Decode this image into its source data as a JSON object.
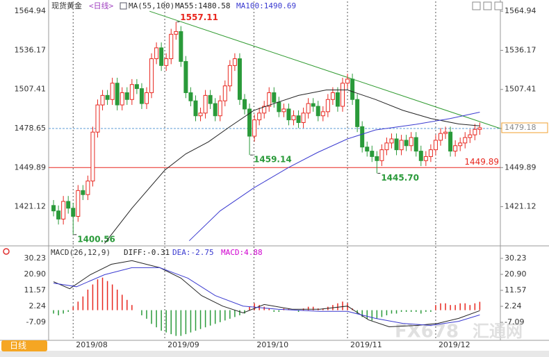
{
  "chart_data": [
    {
      "type": "candlestick",
      "title": "现货黄金",
      "subtitle": "<日线>",
      "indicator": "MA(55,100)",
      "up_color": "#e8271f",
      "down_color": "#2a9a3a",
      "open": [
        1422,
        1418,
        1412,
        1425,
        1420,
        1414,
        1433,
        1430,
        1440,
        1476,
        1496,
        1503,
        1500,
        1512,
        1496,
        1505,
        1500,
        1511,
        1508,
        1497,
        1505,
        1530,
        1538,
        1525,
        1530,
        1548,
        1550,
        1528,
        1505,
        1499,
        1488,
        1490,
        1503,
        1497,
        1488,
        1499,
        1510,
        1525,
        1530,
        1500,
        1493,
        1473,
        1485,
        1490,
        1495,
        1505,
        1498,
        1491,
        1493,
        1485,
        1488,
        1483,
        1490,
        1497,
        1495,
        1488,
        1491,
        1500,
        1505,
        1495,
        1512,
        1515,
        1500,
        1480,
        1465,
        1462,
        1458,
        1455,
        1463,
        1468,
        1471,
        1463,
        1470,
        1466,
        1472,
        1462,
        1455,
        1458,
        1463,
        1470,
        1475,
        1476,
        1462,
        1466,
        1468,
        1472,
        1474,
        1478
      ],
      "high": [
        1426,
        1422,
        1429,
        1429,
        1424,
        1437,
        1437,
        1444,
        1480,
        1500,
        1507,
        1507,
        1516,
        1516,
        1509,
        1509,
        1515,
        1515,
        1512,
        1509,
        1534,
        1542,
        1542,
        1534,
        1552,
        1557.11,
        1554,
        1532,
        1509,
        1503,
        1494,
        1507,
        1507,
        1501,
        1503,
        1514,
        1529,
        1534,
        1534,
        1504,
        1497,
        1489,
        1494,
        1499,
        1509,
        1509,
        1502,
        1497,
        1497,
        1492,
        1492,
        1494,
        1501,
        1501,
        1499,
        1495,
        1504,
        1509,
        1509,
        1516,
        1519,
        1519,
        1504,
        1484,
        1469,
        1466,
        1462,
        1467,
        1472,
        1475,
        1475,
        1474,
        1474,
        1476,
        1476,
        1466,
        1462,
        1467,
        1474,
        1479,
        1480,
        1480,
        1470,
        1472,
        1476,
        1478,
        1482,
        1483
      ],
      "low": [
        1414,
        1408,
        1408,
        1416,
        1400.56,
        1410,
        1426,
        1426,
        1436,
        1472,
        1492,
        1496,
        1496,
        1492,
        1492,
        1496,
        1496,
        1504,
        1493,
        1493,
        1501,
        1526,
        1521,
        1521,
        1526,
        1544,
        1524,
        1501,
        1495,
        1484,
        1484,
        1486,
        1493,
        1484,
        1484,
        1495,
        1506,
        1521,
        1496,
        1489,
        1459.14,
        1469,
        1481,
        1486,
        1491,
        1494,
        1487,
        1487,
        1481,
        1481,
        1479,
        1479,
        1486,
        1491,
        1484,
        1484,
        1487,
        1496,
        1491,
        1491,
        1508,
        1496,
        1476,
        1461,
        1458,
        1454,
        1445.7,
        1451,
        1459,
        1464,
        1459,
        1459,
        1462,
        1462,
        1458,
        1451,
        1451,
        1454,
        1459,
        1466,
        1471,
        1458,
        1458,
        1462,
        1464,
        1468,
        1470,
        1474
      ],
      "close": [
        1418,
        1412,
        1425,
        1420,
        1414,
        1433,
        1430,
        1440,
        1476,
        1496,
        1503,
        1500,
        1512,
        1496,
        1505,
        1500,
        1511,
        1508,
        1497,
        1505,
        1530,
        1538,
        1525,
        1530,
        1548,
        1550,
        1528,
        1505,
        1499,
        1488,
        1490,
        1503,
        1497,
        1488,
        1499,
        1510,
        1525,
        1530,
        1500,
        1493,
        1473,
        1485,
        1490,
        1495,
        1505,
        1498,
        1491,
        1493,
        1485,
        1488,
        1483,
        1490,
        1497,
        1495,
        1488,
        1491,
        1500,
        1505,
        1495,
        1512,
        1515,
        1500,
        1480,
        1465,
        1462,
        1458,
        1455,
        1463,
        1468,
        1471,
        1463,
        1470,
        1466,
        1472,
        1462,
        1455,
        1458,
        1463,
        1470,
        1475,
        1476,
        1462,
        1466,
        1468,
        1472,
        1474,
        1478,
        1479.18
      ],
      "high_labels": [
        null,
        null,
        null,
        null,
        null,
        null,
        null,
        null,
        null,
        null,
        null,
        null,
        null,
        null,
        null,
        null,
        null,
        null,
        null,
        null,
        null,
        null,
        null,
        null,
        null,
        "1557.11",
        null,
        null,
        null,
        null,
        null,
        null,
        null,
        null,
        null,
        null,
        null,
        null,
        null,
        null,
        null,
        null,
        null,
        null,
        null,
        null,
        null,
        null,
        null,
        null,
        null,
        null,
        null,
        null,
        null,
        null,
        null,
        null,
        null,
        null,
        null,
        null,
        null,
        null,
        null,
        null,
        null,
        null,
        null,
        null,
        null,
        null,
        null,
        null,
        null,
        null,
        null,
        null,
        null,
        null,
        null,
        null,
        null,
        null,
        null,
        null,
        null,
        null
      ],
      "low_labels": [
        null,
        null,
        null,
        null,
        "1400.56",
        null,
        null,
        null,
        null,
        null,
        null,
        null,
        null,
        null,
        null,
        null,
        null,
        null,
        null,
        null,
        null,
        null,
        null,
        null,
        null,
        null,
        null,
        null,
        null,
        null,
        null,
        null,
        null,
        null,
        null,
        null,
        null,
        null,
        null,
        null,
        "1459.14",
        null,
        null,
        null,
        null,
        null,
        null,
        null,
        null,
        null,
        null,
        null,
        null,
        null,
        null,
        null,
        null,
        null,
        null,
        null,
        null,
        null,
        null,
        null,
        null,
        null,
        "1445.70",
        null,
        null,
        null,
        null,
        null,
        null,
        null,
        null,
        null,
        null,
        null,
        null,
        null,
        null,
        null,
        null,
        null,
        null,
        null,
        null,
        null
      ],
      "high_label_color": "#e8271f",
      "low_label_color": "#2a9a3a",
      "last_price_color": "#f0a030",
      "xlim": [
        -1,
        91.2
      ],
      "xticks": [
        {
          "value": 4,
          "label": "2019/08"
        },
        {
          "value": 22.7,
          "label": "2019/09"
        },
        {
          "value": 40.9,
          "label": "2019/10"
        },
        {
          "value": 60,
          "label": "2019/11"
        },
        {
          "value": 78,
          "label": "2019/12"
        }
      ],
      "ylim": [
        1393.3,
        1568.1
      ],
      "yticks": [
        1421.12,
        1449.89,
        1478.65,
        1507.41,
        1536.17,
        1564.94
      ],
      "series": [
        {
          "name": "MA55:1480.58",
          "color": "#222222",
          "x": [
            10.4,
            16,
            22.7,
            27,
            31.6,
            36,
            40.9,
            45.8,
            50,
            55.7,
            60,
            65.7,
            71.3,
            77,
            82.7,
            87
          ],
          "values": [
            1394,
            1420,
            1448,
            1460,
            1468.8,
            1480,
            1492,
            1498,
            1503,
            1507,
            1507,
            1500,
            1492,
            1486,
            1482,
            1480.58
          ]
        },
        {
          "name": "MA100:1490.69",
          "color": "#3a3ad0",
          "x": [
            27.7,
            34,
            40.9,
            48,
            53.9,
            60,
            65.7,
            74,
            81,
            87
          ],
          "values": [
            1396,
            1418,
            1435,
            1450,
            1461,
            1471,
            1477.6,
            1481.7,
            1486,
            1490.69
          ]
        }
      ],
      "hlines": [
        {
          "value": 1449.89,
          "color": "#e8271f"
        }
      ],
      "crosshair_y": 1478.65,
      "crosshair_color": "#5b9bd5",
      "trendline": {
        "color": "#2e9a2e",
        "x": [
          19.6,
          91.2
        ],
        "values": [
          1564.94,
          1478.65
        ]
      }
    },
    {
      "type": "macd",
      "title": "MACD(26,12,9)",
      "ylim": [
        -17.6,
        35.9
      ],
      "yticks": [
        -7.09,
        2.24,
        11.57,
        {
          "value": 20.9,
          "label": "20.90"
        },
        30.23
      ],
      "histogram": {
        "name": "MACD:4.88",
        "color": "#d000d0",
        "up_color": "#e8271f",
        "down_color": "#2a9a3a",
        "values": [
          -2,
          -3,
          -2,
          -1,
          2,
          5,
          8,
          12,
          15,
          18,
          19,
          17,
          15,
          12,
          9,
          6,
          3,
          0,
          -3,
          -5,
          -8,
          -10,
          -12,
          -13,
          -14,
          -15,
          -15,
          -14,
          -13,
          -12,
          -11,
          -10,
          -9,
          -8,
          -7,
          -6,
          -5,
          -4,
          -3,
          -2,
          2,
          4,
          3,
          2,
          1,
          -1,
          -1,
          1,
          1,
          0,
          -1,
          1,
          2,
          2,
          1,
          1,
          2,
          3,
          4,
          5,
          4,
          1,
          -2,
          -4,
          -5,
          -6,
          -5,
          -4,
          -3,
          -2,
          -2,
          -1,
          -1,
          -1,
          -1,
          -2,
          -1,
          -1,
          3,
          4,
          4,
          3,
          3,
          4,
          4,
          3,
          4,
          4.88
        ]
      },
      "series": [
        {
          "name": "DIFF:-0.31",
          "color": "#222222",
          "x": [
            0,
            3.3,
            7.5,
            11.8,
            16,
            21.7,
            26,
            30.2,
            34.5,
            38.7,
            43,
            48.7,
            54.3,
            60,
            64.3,
            68.5,
            74.2,
            78.4,
            82.7,
            87
          ],
          "values": [
            16.6,
            12.5,
            20.7,
            26.8,
            28.9,
            24.8,
            18.7,
            8.5,
            2.4,
            -1.6,
            3.3,
            0.5,
            0.5,
            2.4,
            -5.7,
            -9.7,
            -8.9,
            -7.7,
            -4.8,
            -0.31
          ]
        },
        {
          "name": "DEA:-2.75",
          "color": "#3a3ad0",
          "x": [
            0,
            4.7,
            10.4,
            16,
            21.7,
            27.4,
            33,
            38.7,
            45.8,
            54.3,
            60,
            65.7,
            71.3,
            77,
            82.7,
            87
          ],
          "values": [
            15.8,
            13.7,
            20.7,
            24.8,
            24.8,
            18.7,
            8.5,
            2.4,
            0.5,
            -0.7,
            -0.7,
            -4.8,
            -7.7,
            -8.9,
            -6.5,
            -2.75
          ]
        }
      ]
    }
  ],
  "ui": {
    "tab": "日线",
    "watermark": {
      "brand": "FX678",
      "name": "汇通网"
    }
  }
}
